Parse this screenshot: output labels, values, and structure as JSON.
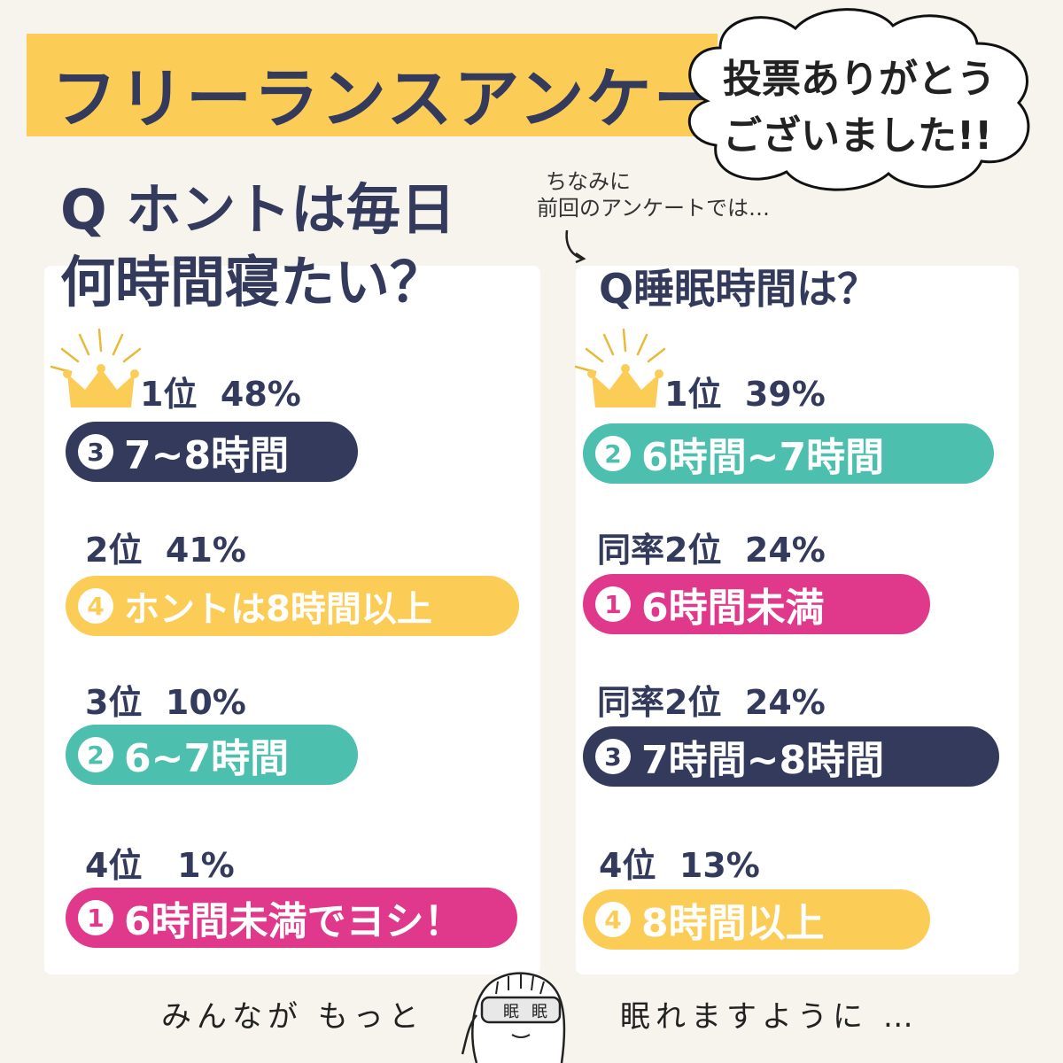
{
  "header": {
    "title": "フリーランスアンケート",
    "thanks_line1": "投票ありがとう",
    "thanks_line2": "ございました!!"
  },
  "left": {
    "question_line1": "Q ホントは毎日",
    "question_line2": "何時間寝たい？",
    "results": [
      {
        "rank": "1位",
        "percent": "48%",
        "num": "3",
        "answer": "7~8時間",
        "color": "navy"
      },
      {
        "rank": "2位",
        "percent": "41%",
        "num": "4",
        "answer": "ホントは8時間以上",
        "color": "yellow"
      },
      {
        "rank": "3位",
        "percent": "10%",
        "num": "2",
        "answer": "6~7時間",
        "color": "teal"
      },
      {
        "rank": "4位",
        "percent": "1%",
        "num": "1",
        "answer": "6時間未満でヨシ！",
        "color": "pink"
      }
    ]
  },
  "right": {
    "note_line1": "ちなみに",
    "note_line2": "前回のアンケートでは…",
    "question": "Q睡眠時間は？",
    "results": [
      {
        "rank": "1位",
        "percent": "39%",
        "num": "2",
        "answer": "6時間~7時間",
        "color": "teal"
      },
      {
        "rank": "同率2位",
        "percent": "24%",
        "num": "1",
        "answer": "6時間未満",
        "color": "pink"
      },
      {
        "rank": "同率2位",
        "percent": "24%",
        "num": "3",
        "answer": "7時間~8時間",
        "color": "navy"
      },
      {
        "rank": "4位",
        "percent": "13%",
        "num": "4",
        "answer": "8時間以上",
        "color": "yellow"
      }
    ]
  },
  "footer": {
    "left_text": "みんなが もっと",
    "right_text": "眠れますように …"
  },
  "colors": {
    "navy": "#333a5c",
    "yellow": "#fbcd56",
    "teal": "#4dbfae",
    "pink": "#e0388a",
    "background": "#f7f4ee"
  }
}
